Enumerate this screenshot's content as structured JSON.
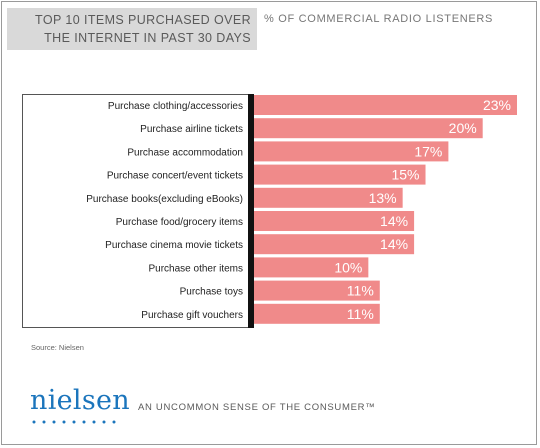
{
  "header": {
    "title_line1": "TOP 10 ITEMS PURCHASED OVER",
    "title_line2": "THE INTERNET IN PAST 30 DAYS",
    "subtitle": "% OF COMMERCIAL RADIO LISTENERS"
  },
  "source": "Source: Nielsen",
  "brand": {
    "logo_text": "nielsen",
    "logo_color": "#1b75bc",
    "tagline": "AN UNCOMMON SENSE OF THE CONSUMER™"
  },
  "colors": {
    "bar": "#f08a8a",
    "axis": "#111111",
    "label": "#222222",
    "value": "#ffffff"
  },
  "chart_data": {
    "type": "bar",
    "orientation": "horizontal",
    "categories": [
      "Purchase clothing/accessories",
      "Purchase airline tickets",
      "Purchase accommodation",
      "Purchase concert/event tickets",
      "Purchase books(excluding eBooks)",
      "Purchase food/grocery items",
      "Purchase cinema movie tickets",
      "Purchase other items",
      "Purchase toys",
      "Purchase gift vouchers"
    ],
    "values": [
      23,
      20,
      17,
      15,
      13,
      14,
      14,
      10,
      11,
      11
    ],
    "value_labels": [
      "23%",
      "20%",
      "17%",
      "15%",
      "13%",
      "14%",
      "14%",
      "10%",
      "11%",
      "11%"
    ],
    "xlim": [
      0,
      23
    ],
    "grid": false,
    "legend": "none"
  }
}
